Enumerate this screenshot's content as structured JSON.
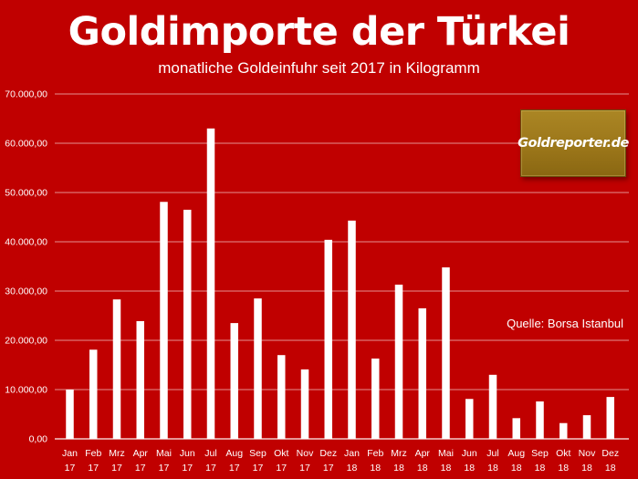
{
  "header": {
    "title": "Goldimporte der Türkei",
    "subtitle": "monatliche Goldeinfuhr seit 2017 in Kilogramm"
  },
  "logo": {
    "text": "Goldreporter.de"
  },
  "source": "Quelle: Borsa Istanbul",
  "colors": {
    "background": "#c00000",
    "bar": "#ffffff",
    "gridline": "#ffffff",
    "text": "#ffffff",
    "logo_background": "#a07b1c"
  },
  "chart_data": {
    "type": "bar",
    "title": "Goldimporte der Türkei",
    "subtitle": "monatliche Goldeinfuhr seit 2017 in Kilogramm",
    "xlabel": "",
    "ylabel": "",
    "ylim": [
      0,
      70000
    ],
    "yticks": [
      0,
      10000,
      20000,
      30000,
      40000,
      50000,
      60000,
      70000
    ],
    "ytick_labels": [
      "0,00",
      "10.000,00",
      "20.000,00",
      "30.000,00",
      "40.000,00",
      "50.000,00",
      "60.000,00",
      "70.000,00"
    ],
    "grid": true,
    "legend": "none",
    "categories": [
      {
        "month": "Jan",
        "year": "17"
      },
      {
        "month": "Feb",
        "year": "17"
      },
      {
        "month": "Mrz",
        "year": "17"
      },
      {
        "month": "Apr",
        "year": "17"
      },
      {
        "month": "Mai",
        "year": "17"
      },
      {
        "month": "Jun",
        "year": "17"
      },
      {
        "month": "Jul",
        "year": "17"
      },
      {
        "month": "Aug",
        "year": "17"
      },
      {
        "month": "Sep",
        "year": "17"
      },
      {
        "month": "Okt",
        "year": "17"
      },
      {
        "month": "Nov",
        "year": "17"
      },
      {
        "month": "Dez",
        "year": "17"
      },
      {
        "month": "Jan",
        "year": "18"
      },
      {
        "month": "Feb",
        "year": "18"
      },
      {
        "month": "Mrz",
        "year": "18"
      },
      {
        "month": "Apr",
        "year": "18"
      },
      {
        "month": "Mai",
        "year": "18"
      },
      {
        "month": "Jun",
        "year": "18"
      },
      {
        "month": "Jul",
        "year": "18"
      },
      {
        "month": "Aug",
        "year": "18"
      },
      {
        "month": "Sep",
        "year": "18"
      },
      {
        "month": "Okt",
        "year": "18"
      },
      {
        "month": "Nov",
        "year": "18"
      },
      {
        "month": "Dez",
        "year": "18"
      }
    ],
    "values": [
      10000,
      18100,
      28300,
      23900,
      48100,
      46500,
      63000,
      23500,
      28500,
      17000,
      14100,
      40400,
      44300,
      16300,
      31300,
      26500,
      34800,
      8100,
      13000,
      4200,
      7600,
      3200,
      4800,
      8500
    ]
  }
}
